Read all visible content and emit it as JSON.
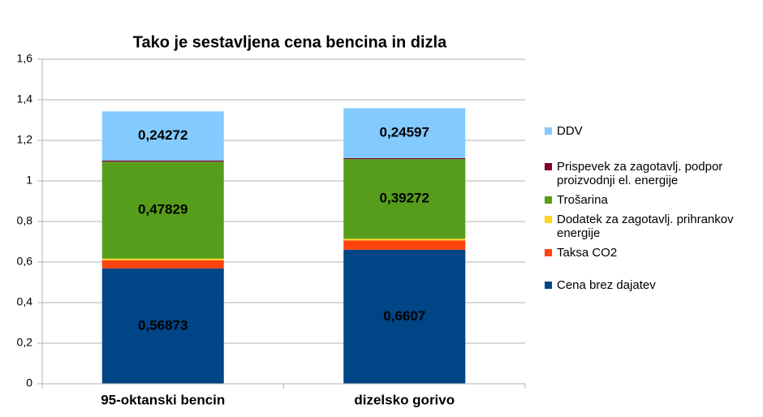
{
  "chart_data": {
    "type": "stacked_bar",
    "title": "Tako je sestavljena cena bencina in dizla",
    "categories": [
      "95-oktanski bencin",
      "dizelsko gorivo"
    ],
    "series": [
      {
        "name": "Cena brez dajatev",
        "color": "#004586",
        "values": [
          0.56873,
          0.6607
        ],
        "value_labels": [
          "0,56873",
          "0,6607"
        ]
      },
      {
        "name": "Taksa CO2",
        "color": "#ff420e",
        "values": [
          0.04,
          0.046
        ],
        "value_labels": [
          null,
          null
        ]
      },
      {
        "name": "Dodatek za zagotavlj. prihrankov energije",
        "color": "#ffd320",
        "values": [
          0.008,
          0.008
        ],
        "value_labels": [
          null,
          null
        ]
      },
      {
        "name": "Trošarina",
        "color": "#579d1c",
        "values": [
          0.47829,
          0.39272
        ],
        "value_labels": [
          "0,47829",
          "0,39272"
        ]
      },
      {
        "name": "Prispevek za zagotavlj. podpor proizvodnji el. energije",
        "color": "#7e0021",
        "values": [
          0.005,
          0.005
        ],
        "value_labels": [
          null,
          null
        ]
      },
      {
        "name": "DDV",
        "color": "#83caff",
        "values": [
          0.24272,
          0.24597
        ],
        "value_labels": [
          "0,24272",
          "0,24597"
        ]
      }
    ],
    "ylim": [
      0,
      1.6
    ],
    "yticks": [
      0,
      {
        "value": 0.2,
        "label": "0,2"
      },
      {
        "value": 0.4,
        "label": "0,4"
      },
      {
        "value": 0.6,
        "label": "0,6"
      },
      {
        "value": 0.8,
        "label": "0,8"
      },
      1,
      {
        "value": 1.2,
        "label": "1,2"
      },
      {
        "value": 1.4,
        "label": "1,4"
      },
      {
        "value": 1.6,
        "label": "1,6"
      }
    ],
    "grid": true,
    "legend": "right"
  }
}
